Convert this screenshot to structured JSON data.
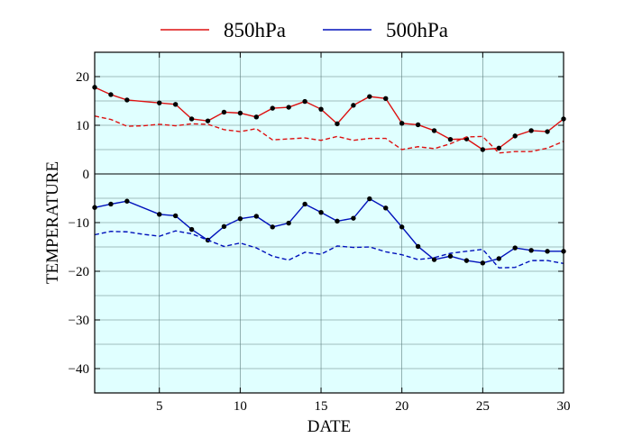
{
  "chart_data": {
    "type": "line",
    "xlabel": "DATE",
    "ylabel": "TEMPERATURE",
    "xlim": [
      1,
      30
    ],
    "ylim": [
      -45,
      25
    ],
    "xticks": [
      5,
      10,
      15,
      20,
      25,
      30
    ],
    "yticks": [
      20,
      10,
      0,
      -10,
      -20,
      -30,
      -40
    ],
    "ytick_labels": [
      "20",
      "10",
      "0",
      "−10",
      "−20",
      "−30",
      "−40"
    ],
    "grid": true,
    "zero_line": true,
    "background": "#e0ffff",
    "legend_position": "top-center",
    "x": [
      1,
      2,
      3,
      4,
      5,
      6,
      7,
      8,
      9,
      10,
      11,
      12,
      13,
      14,
      15,
      16,
      17,
      18,
      19,
      20,
      21,
      22,
      23,
      24,
      25,
      26,
      27,
      28,
      29,
      30
    ],
    "series": [
      {
        "name": "850hPa",
        "color": "#dd1111",
        "style": "solid",
        "markers": true,
        "values": [
          17.8,
          16.3,
          15.2,
          null,
          14.6,
          14.3,
          11.3,
          10.9,
          12.7,
          12.5,
          11.7,
          13.5,
          13.7,
          14.9,
          13.3,
          10.3,
          14.1,
          15.9,
          15.5,
          10.4,
          10.1,
          8.9,
          7.1,
          7.2,
          5.0,
          5.3,
          7.8,
          8.9,
          8.7,
          11.3
        ]
      },
      {
        "name": "",
        "color": "#dd1111",
        "style": "dashed",
        "markers": false,
        "values": [
          11.9,
          11.2,
          9.8,
          9.9,
          10.2,
          9.9,
          10.3,
          10.2,
          9.1,
          8.7,
          9.3,
          7.0,
          7.2,
          7.4,
          6.9,
          7.7,
          6.9,
          7.3,
          7.3,
          5.0,
          5.6,
          5.2,
          6.2,
          7.6,
          7.7,
          4.3,
          4.6,
          4.6,
          5.3,
          6.7
        ]
      },
      {
        "name": "500hPa",
        "color": "#0011bb",
        "style": "solid",
        "markers": true,
        "values": [
          -6.9,
          -6.2,
          -5.6,
          null,
          -8.3,
          -8.6,
          -11.4,
          -13.6,
          -10.8,
          -9.2,
          -8.7,
          -10.9,
          -10.1,
          -6.2,
          -7.9,
          -9.7,
          -9.1,
          -5.1,
          -7.0,
          -10.9,
          -14.9,
          -17.6,
          -16.9,
          -17.8,
          -18.3,
          -17.4,
          -15.2,
          -15.7,
          -15.9,
          -15.9
        ]
      },
      {
        "name": "",
        "color": "#0011bb",
        "style": "dashed",
        "markers": false,
        "values": [
          -12.5,
          -11.8,
          -11.9,
          -12.4,
          -12.8,
          -11.7,
          -12.3,
          -13.6,
          -14.9,
          -14.2,
          -15.2,
          -16.9,
          -17.7,
          -16.1,
          -16.5,
          -14.8,
          -15.1,
          -15.0,
          -16.0,
          -16.6,
          -17.6,
          -17.2,
          -16.3,
          -15.9,
          -15.5,
          -19.3,
          -19.2,
          -17.8,
          -17.8,
          -18.4
        ]
      }
    ]
  }
}
